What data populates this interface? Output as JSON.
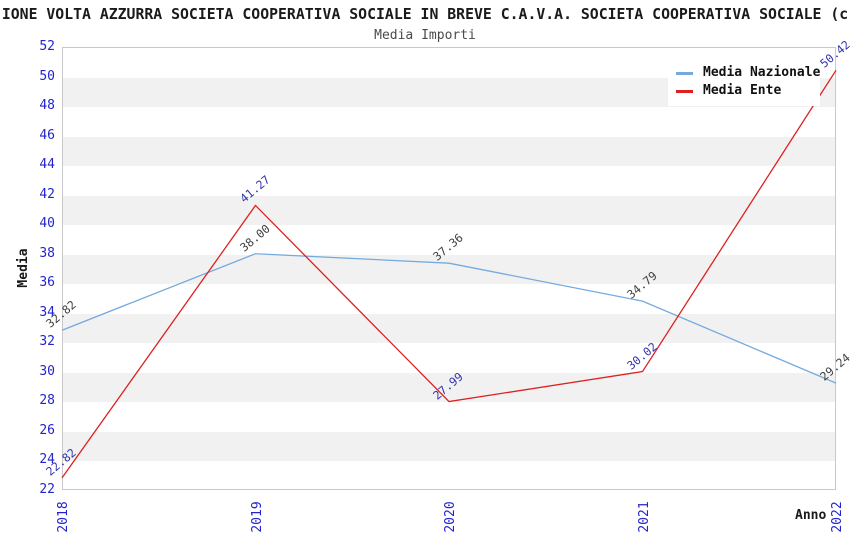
{
  "title": "IONE VOLTA AZZURRA SOCIETA COOPERATIVA SOCIALE IN BREVE C.A.V.A. SOCIETA COOPERATIVA SOCIALE (c",
  "subtitle": "Media Importi",
  "chart_data": {
    "type": "line",
    "categories": [
      "2018",
      "2019",
      "2020",
      "2021",
      "2022"
    ],
    "series": [
      {
        "name": "Media Nazionale",
        "color": "#74aade",
        "label_color": "#3f3f3f",
        "values": [
          32.82,
          38.0,
          37.36,
          34.79,
          29.24
        ]
      },
      {
        "name": "Media Ente",
        "color": "#dd2020",
        "label_color": "#3333ae",
        "values": [
          22.82,
          41.27,
          27.99,
          30.02,
          50.42
        ]
      }
    ],
    "xlabel": "Anno",
    "ylabel": "Media",
    "ylim": [
      22,
      52
    ],
    "ytick_step": 2,
    "yticks": [
      22,
      24,
      26,
      28,
      30,
      32,
      34,
      36,
      38,
      40,
      42,
      44,
      46,
      48,
      50,
      52
    ],
    "legend_position": "top-right",
    "grid": "horizontal-bands",
    "band_color": "#f1f1f1",
    "tick_color": "#2424cc",
    "plot_border_color": "#c9c9c9"
  }
}
